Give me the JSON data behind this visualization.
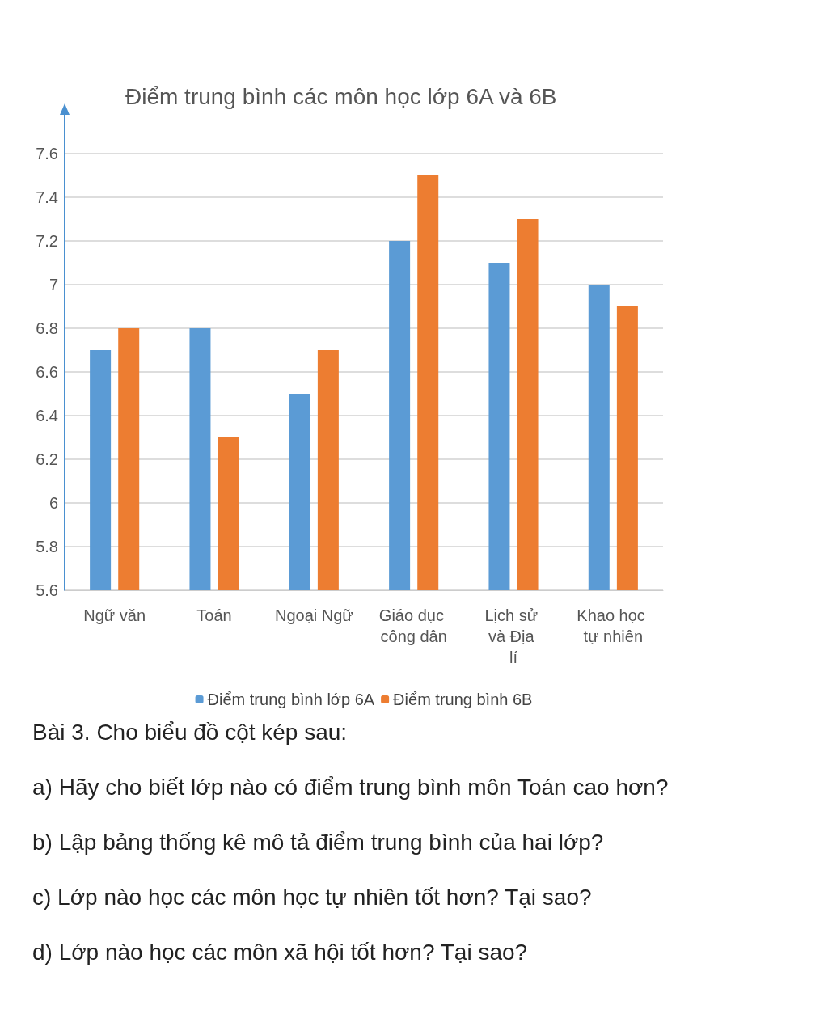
{
  "chart_data": {
    "type": "bar",
    "title": "Điểm trung bình các môn học lớp 6A và 6B",
    "categories": [
      "Ngữ văn",
      "Toán",
      "Ngoại Ngữ",
      "Giáo dục công dân",
      "Lịch sử và Địa lí",
      "Khao học tự nhiên"
    ],
    "series": [
      {
        "name": "Điểm trung bình lớp 6A",
        "color": "#5b9bd5",
        "values": [
          6.7,
          6.8,
          6.5,
          7.2,
          7.1,
          7.0
        ]
      },
      {
        "name": "Điểm trung bình 6B",
        "color": "#ed7d31",
        "values": [
          6.8,
          6.3,
          6.7,
          7.5,
          7.3,
          6.9
        ]
      }
    ],
    "ylim": [
      5.6,
      7.6
    ],
    "yticks": [
      5.6,
      5.8,
      6,
      6.2,
      6.4,
      6.6,
      6.8,
      7,
      7.2,
      7.4,
      7.6
    ],
    "grid": "y",
    "legend": "bottom",
    "annotations": [
      "Bài 3. Cho biểu đồ cột kép sau:",
      "a) Hãy cho biết lớp nào có điểm trung bình môn Toán cao hơn?",
      "b) Lập bảng thống kê mô tả điểm trung bình của hai lớp?",
      "c) Lớp nào học các môn học tự nhiên tốt hơn? Tại sao?",
      "d) Lớp nào học các môn xã hội tốt hơn? Tại sao?"
    ]
  }
}
